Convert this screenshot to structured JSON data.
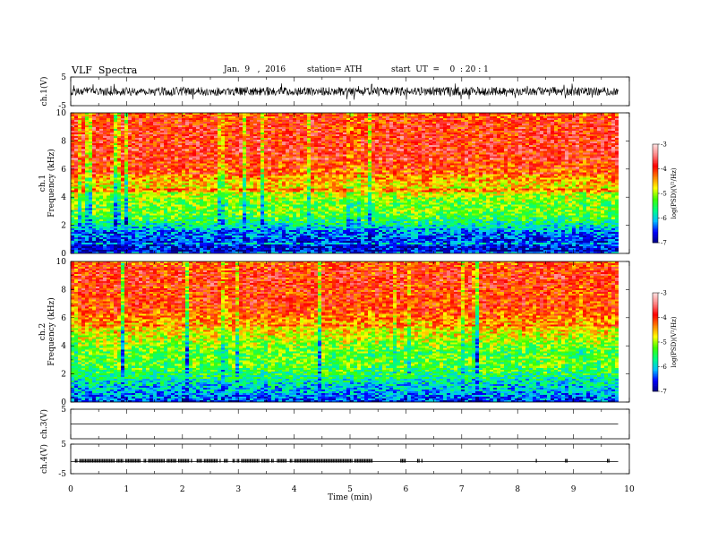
{
  "header": {
    "title": "VLF  Spectra",
    "date": "Jan.  9   ,  2016",
    "station": "station= ATH",
    "start_ut": "start  UT  =    0  : 20 : 1"
  },
  "x_axis": {
    "label": "Time  (min)",
    "range": [
      0,
      10
    ],
    "ticks": [
      "0",
      "1",
      "2",
      "3",
      "4",
      "5",
      "6",
      "7",
      "8",
      "9",
      "10"
    ]
  },
  "colorbar": {
    "label": "log(PSD)(V²/Hz)",
    "range": [
      -7,
      -3
    ],
    "ticks": [
      "-3",
      "-4",
      "-5",
      "-6",
      "-7"
    ],
    "colors": [
      "#000080",
      "#0000ff",
      "#00c0ff",
      "#00ff80",
      "#40ff00",
      "#ffff00",
      "#ff8000",
      "#ff0000",
      "#ff8080",
      "#ffe0e0"
    ]
  },
  "chart_data": [
    {
      "type": "line",
      "name": "ch1-waveform",
      "ylabel": "ch.1(V)",
      "ylim": [
        -5,
        5
      ],
      "yticks": [
        "5",
        "-5"
      ],
      "x_range_min": [
        0,
        9.8
      ],
      "approx_amplitude_v": [
        -1.5,
        1.5
      ],
      "peak_amplitude_v": [
        -3,
        3
      ]
    },
    {
      "type": "heatmap",
      "name": "ch1-spectrogram",
      "ylabel": "ch.1",
      "ylabel2": "Frequency  (kHz)",
      "ylim": [
        0,
        10
      ],
      "yticks": [
        "0",
        "2",
        "4",
        "6",
        "8",
        "10"
      ],
      "x_range_min": [
        0,
        9.8
      ],
      "freq_khz": [
        0,
        0.5,
        1,
        1.5,
        2,
        2.5,
        3,
        3.5,
        4,
        4.5,
        5,
        5.5,
        6,
        6.5,
        7,
        7.5,
        8,
        8.5,
        9,
        9.5,
        10
      ],
      "mean_log_psd": [
        -6.8,
        -6.6,
        -6.4,
        -6.3,
        -5.8,
        -5.4,
        -5.2,
        -5.2,
        -5.0,
        -4.8,
        -4.6,
        -4.4,
        -4.2,
        -4.0,
        -3.9,
        -3.9,
        -3.9,
        -3.9,
        -3.9,
        -4.0,
        -4.2
      ]
    },
    {
      "type": "heatmap",
      "name": "ch2-spectrogram",
      "ylabel": "ch.2",
      "ylabel2": "Frequency  (kHz)",
      "ylim": [
        0,
        10
      ],
      "yticks": [
        "0",
        "2",
        "4",
        "6",
        "8",
        "10"
      ],
      "x_range_min": [
        0,
        9.8
      ],
      "freq_khz": [
        0,
        0.5,
        1,
        1.5,
        2,
        2.5,
        3,
        3.5,
        4,
        4.5,
        5,
        5.5,
        6,
        6.5,
        7,
        7.5,
        8,
        8.5,
        9,
        9.5,
        10
      ],
      "mean_log_psd": [
        -6.5,
        -6.2,
        -6.0,
        -5.8,
        -5.5,
        -5.3,
        -5.2,
        -5.3,
        -5.1,
        -4.9,
        -4.7,
        -4.5,
        -4.3,
        -4.1,
        -4.0,
        -4.0,
        -4.0,
        -3.9,
        -3.9,
        -4.0,
        -4.2
      ]
    },
    {
      "type": "line",
      "name": "ch3-waveform",
      "ylabel": "ch.3(V)",
      "ylim": [
        -5,
        5
      ],
      "yticks": [
        "5"
      ],
      "x_range_min": [
        0,
        9.8
      ],
      "level_v": 0
    },
    {
      "type": "line",
      "name": "ch4-waveform",
      "ylabel": "ch.4(V)",
      "ylim": [
        -5,
        5
      ],
      "yticks": [
        "5",
        "-5"
      ],
      "x_range_min": [
        0,
        9.8
      ],
      "level_v": -0.5,
      "pulse_bursts_min": [
        [
          0.05,
          5.4
        ],
        [
          5.9,
          6.0
        ],
        [
          6.2,
          6.3
        ],
        [
          8.3,
          8.35
        ],
        [
          8.85,
          8.9
        ],
        [
          9.6,
          9.65
        ]
      ]
    }
  ]
}
